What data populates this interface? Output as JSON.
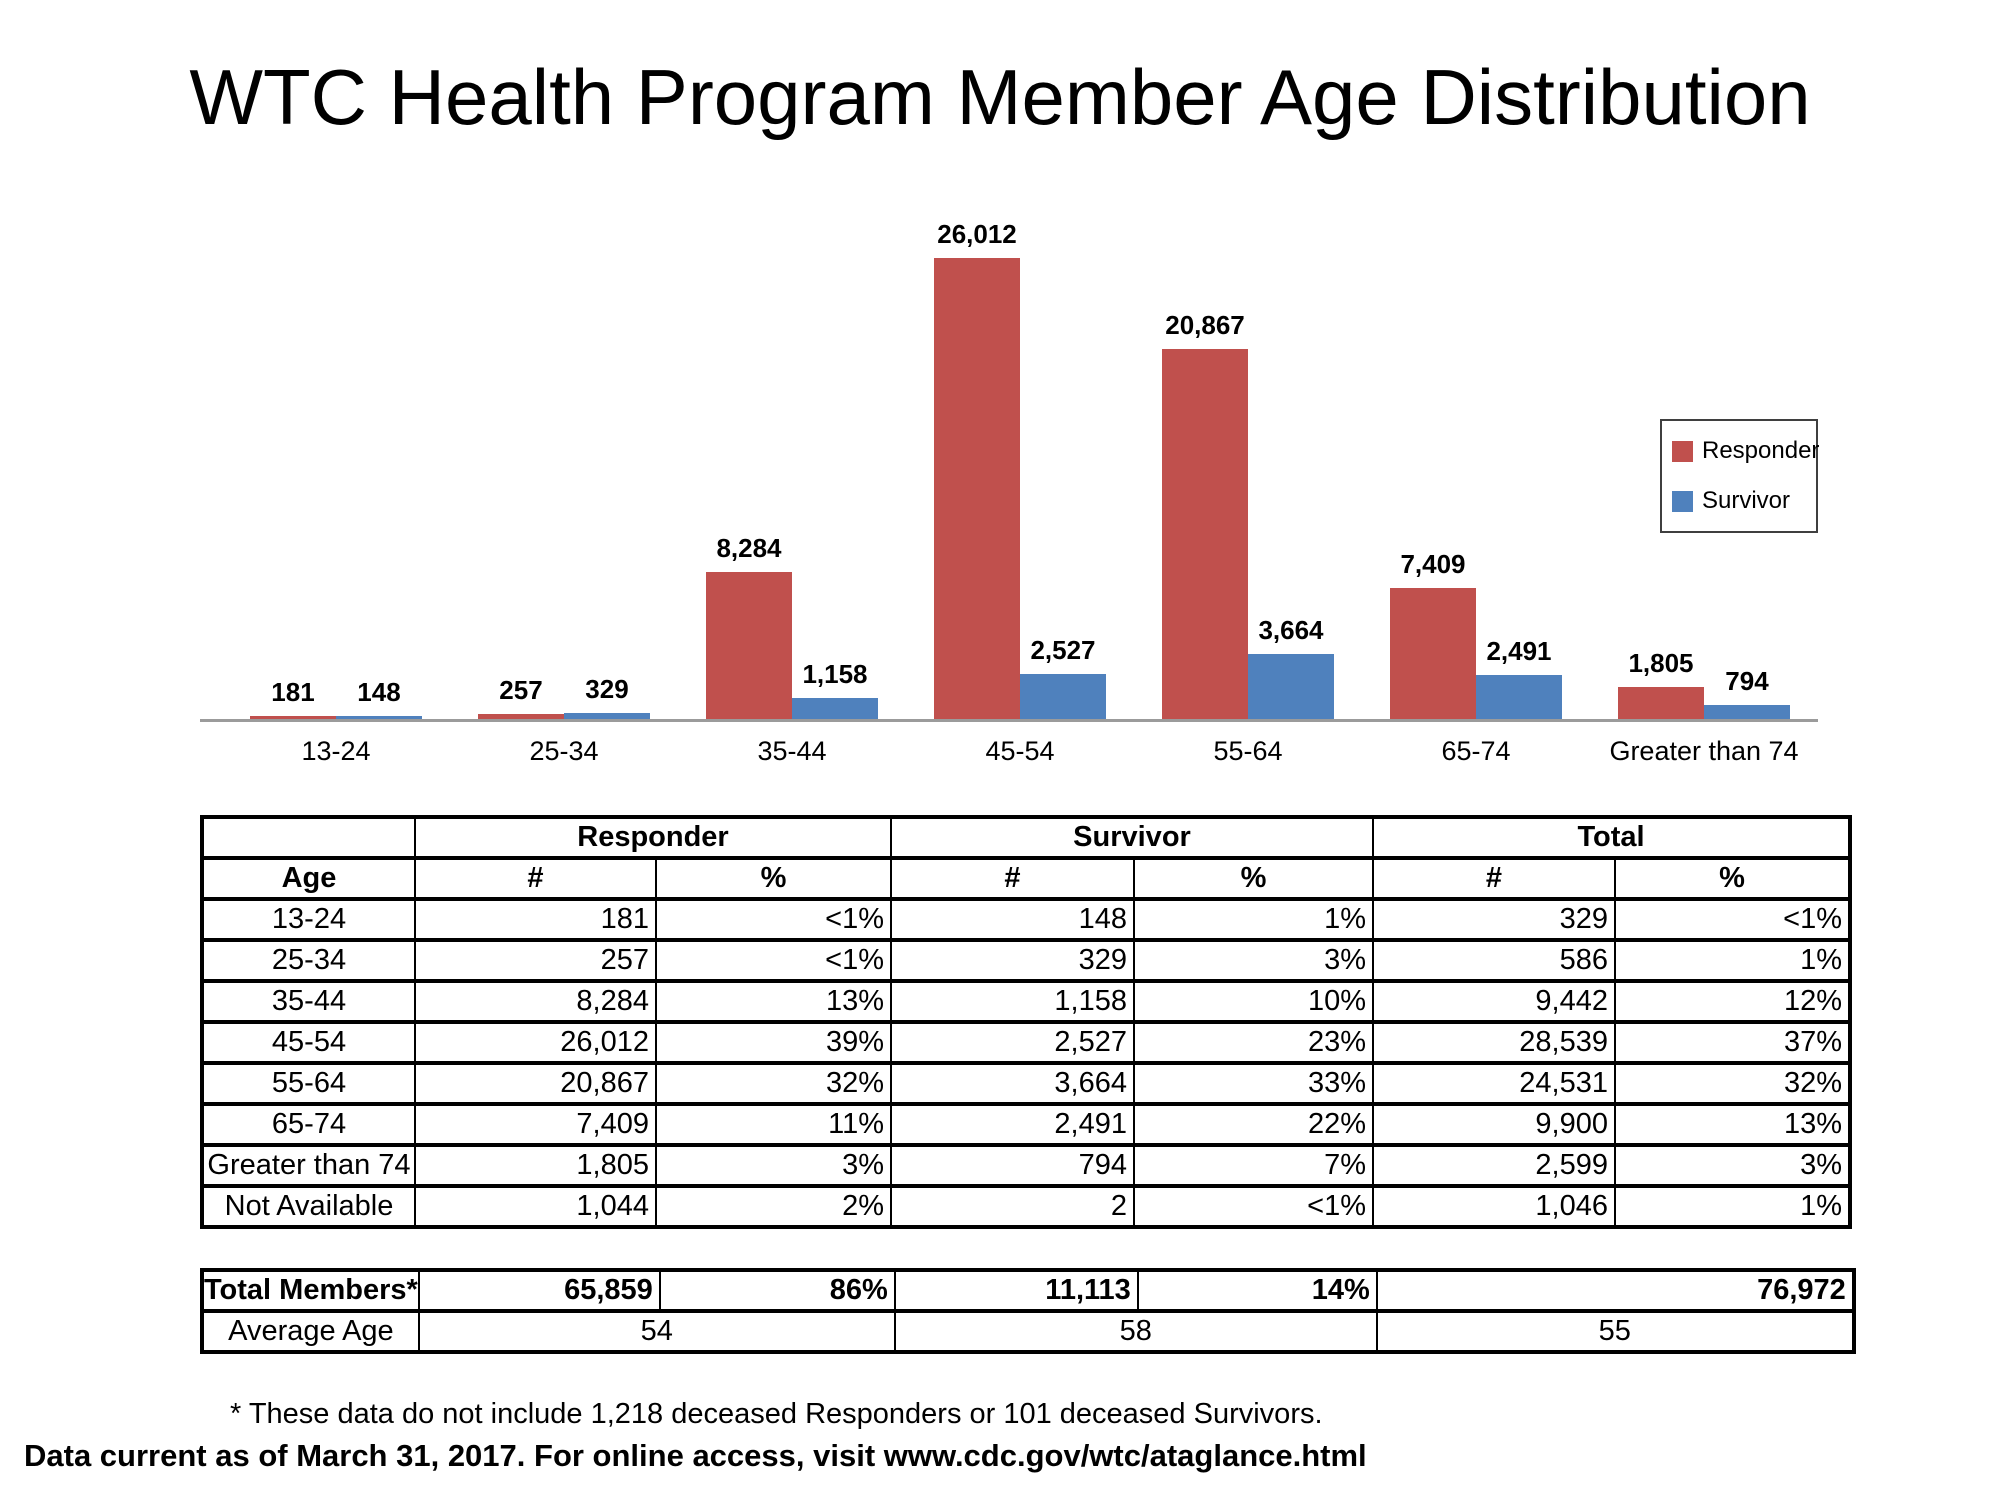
{
  "title": "WTC Health Program Member Age Distribution",
  "chart_data": {
    "type": "bar",
    "title": "WTC Health Program Member Age Distribution",
    "categories": [
      "13-24",
      "25-34",
      "35-44",
      "45-54",
      "55-64",
      "65-74",
      "Greater than 74"
    ],
    "series": [
      {
        "name": "Responder",
        "color": "#C0504D",
        "values": [
          181,
          257,
          8284,
          26012,
          20867,
          7409,
          1805
        ]
      },
      {
        "name": "Survivor",
        "color": "#4F81BD",
        "values": [
          148,
          329,
          1158,
          2527,
          3664,
          2491,
          794
        ]
      }
    ],
    "xlabel": "",
    "ylabel": "",
    "ylim": [
      0,
      26012
    ],
    "grid": false,
    "y_axis_shown": false,
    "data_labels": "above bars, thousands separated by commas",
    "legend_position": "right",
    "axis_color": "#9b9b9b"
  },
  "legend": {
    "items": [
      {
        "label": "Responder",
        "color": "#C0504D"
      },
      {
        "label": "Survivor",
        "color": "#4F81BD"
      }
    ]
  },
  "table": {
    "group_headers": [
      "",
      "Responder",
      "Survivor",
      "Total"
    ],
    "col_headers": [
      "Age",
      "#",
      "%",
      "#",
      "%",
      "#",
      "%"
    ],
    "rows": [
      [
        "13-24",
        "181",
        "<1%",
        "148",
        "1%",
        "329",
        "<1%"
      ],
      [
        "25-34",
        "257",
        "<1%",
        "329",
        "3%",
        "586",
        "1%"
      ],
      [
        "35-44",
        "8,284",
        "13%",
        "1,158",
        "10%",
        "9,442",
        "12%"
      ],
      [
        "45-54",
        "26,012",
        "39%",
        "2,527",
        "23%",
        "28,539",
        "37%"
      ],
      [
        "55-64",
        "20,867",
        "32%",
        "3,664",
        "33%",
        "24,531",
        "32%"
      ],
      [
        "65-74",
        "7,409",
        "11%",
        "2,491",
        "22%",
        "9,900",
        "13%"
      ],
      [
        "Greater than 74",
        "1,805",
        "3%",
        "794",
        "7%",
        "2,599",
        "3%"
      ],
      [
        "Not Available",
        "1,044",
        "2%",
        "2",
        "<1%",
        "1,046",
        "1%"
      ]
    ]
  },
  "summary": {
    "total_row": {
      "label": "Total Members*",
      "responder_n": "65,859",
      "responder_pct": "86%",
      "survivor_n": "11,113",
      "survivor_pct": "14%",
      "total": "76,972"
    },
    "average_row": {
      "label": "Average Age",
      "responder": "54",
      "survivor": "58",
      "total": "55"
    }
  },
  "footnote": "* These data do not include 1,218 deceased Responders or 101 deceased Survivors.",
  "data_current_note": "Data current as of March 31, 2017. For online access, visit www.cdc.gov/wtc/ataglance.html"
}
